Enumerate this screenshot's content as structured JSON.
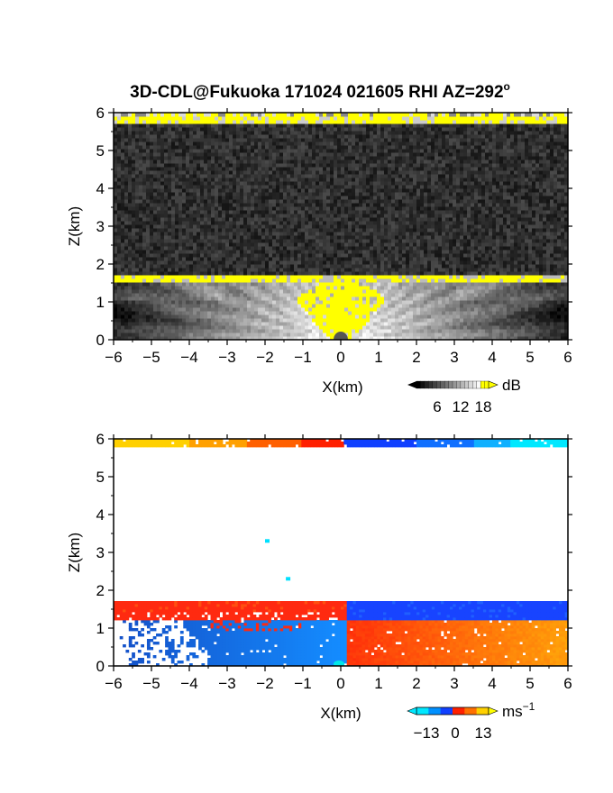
{
  "title_main": "3D-CDL@Fukuoka 171024 021605 RHI AZ=292",
  "title_degree": "o",
  "chart_data": [
    {
      "type": "heatmap",
      "name": "snr",
      "xlabel": "X(km)",
      "ylabel": "Z(km)",
      "xlim": [
        -6,
        6
      ],
      "ylim": [
        0,
        6
      ],
      "xticks": [
        -6,
        -5,
        -4,
        -3,
        -2,
        -1,
        0,
        1,
        2,
        3,
        4,
        5,
        6
      ],
      "yticks": [
        0,
        1,
        2,
        3,
        4,
        5,
        6
      ],
      "layers": {
        "boundary_layer_top_km": 1.65,
        "upper_layer_base_km": 5.8
      },
      "colorbar": {
        "unit": "dB",
        "ticks": [
          6,
          12,
          18
        ],
        "colors": [
          "#000000",
          "#ffffff",
          "#ffff00"
        ]
      }
    },
    {
      "type": "heatmap",
      "name": "doppler-velocity",
      "xlabel": "X(km)",
      "ylabel": "Z(km)",
      "xlim": [
        -6,
        6
      ],
      "ylim": [
        0,
        6
      ],
      "xticks": [
        -6,
        -5,
        -4,
        -3,
        -2,
        -1,
        0,
        1,
        2,
        3,
        4,
        5,
        6
      ],
      "yticks": [
        0,
        1,
        2,
        3,
        4,
        5,
        6
      ],
      "colorbar": {
        "unit": "ms",
        "unit_exp": "−1",
        "ticks": [
          -13,
          0,
          13
        ],
        "colors": [
          "#00ffff",
          "#0050ff",
          "#ff2000",
          "#ffff00"
        ]
      }
    }
  ]
}
